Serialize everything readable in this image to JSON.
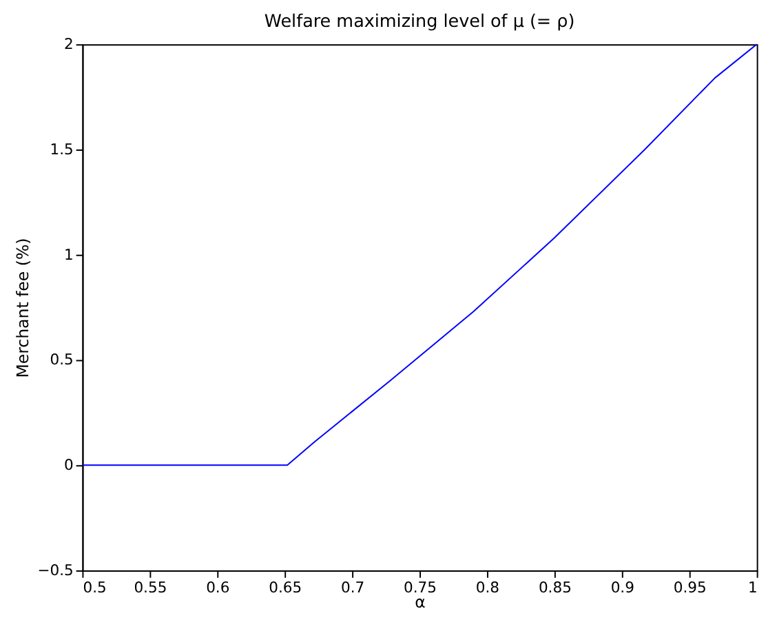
{
  "chart_data": {
    "type": "line",
    "title": "Welfare maximizing level of μ (= ρ)",
    "xlabel": "α",
    "ylabel": "Merchant fee (%)",
    "x": [
      0.5,
      0.652,
      0.672,
      0.728,
      0.79,
      0.85,
      0.917,
      0.969,
      1.0
    ],
    "series": [
      {
        "color": "#0000ff",
        "values": [
          0,
          0,
          0.11,
          0.4,
          0.73,
          1.08,
          1.5,
          1.84,
          2.0
        ]
      }
    ],
    "xlim": [
      0.5,
      1
    ],
    "xticks": [
      0.5,
      0.55,
      0.6,
      0.65,
      0.7,
      0.75,
      0.8,
      0.85,
      0.9,
      0.95,
      1
    ],
    "ylim": [
      -0.5,
      2
    ],
    "yticks": [
      -0.5,
      0,
      0.5,
      1,
      1.5,
      2
    ],
    "grid": false,
    "marker": "none",
    "line_style": "solid"
  }
}
